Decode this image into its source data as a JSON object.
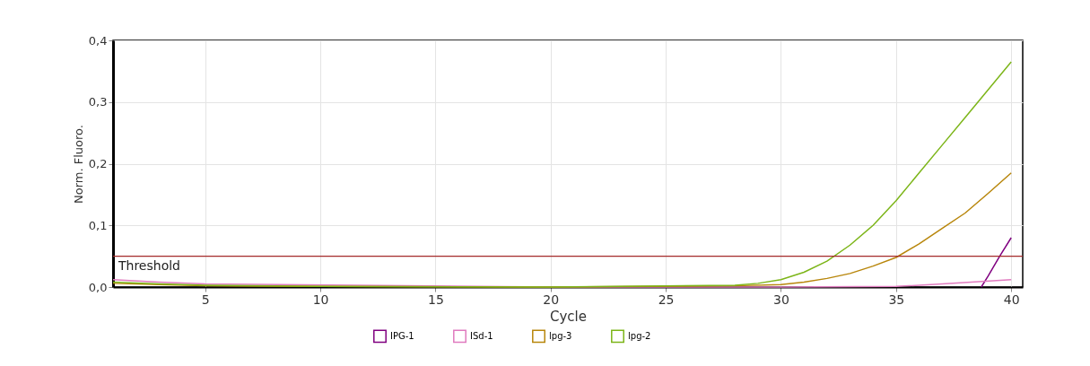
{
  "chart_data": {
    "type": "line",
    "xlabel": "Cycle",
    "ylabel": "Norm. Fluoro.",
    "xlim": [
      1,
      40.5
    ],
    "ylim": [
      0,
      0.4
    ],
    "xticks": [
      5,
      10,
      15,
      20,
      25,
      30,
      35,
      40
    ],
    "yticks": [
      {
        "value": 0,
        "label": "0,0"
      },
      {
        "value": 0.1,
        "label": "0,1"
      },
      {
        "value": 0.2,
        "label": "0,2"
      },
      {
        "value": 0.3,
        "label": "0,3"
      },
      {
        "value": 0.4,
        "label": "0,4"
      }
    ],
    "grid": true,
    "legend": "bottom",
    "marker": "none",
    "line_style": "solid",
    "ref_lines": [
      {
        "axis": "y",
        "value": 0.05,
        "label": "Threshold",
        "color": "#a52a2a"
      }
    ],
    "series": [
      {
        "name": "IPG-1",
        "color": "#800080",
        "x": [
          38.7,
          39,
          39.5,
          40
        ],
        "values": [
          0,
          0.018,
          0.05,
          0.08
        ]
      },
      {
        "name": "ISd-1",
        "color": "#e07bbf",
        "x": [
          1,
          3,
          5,
          20,
          30,
          35,
          37,
          40
        ],
        "values": [
          0.012,
          0.008,
          0.005,
          0,
          0,
          0.001,
          0.005,
          0.012
        ]
      },
      {
        "name": "lpg-3",
        "color": "#b8860b",
        "x": [
          1,
          3,
          5,
          10,
          20,
          28,
          30,
          31,
          32,
          33,
          34,
          35,
          36,
          37,
          38,
          39,
          40
        ],
        "values": [
          0.006,
          0.004,
          0.002,
          0.001,
          0,
          0.002,
          0.004,
          0.008,
          0.014,
          0.022,
          0.034,
          0.048,
          0.07,
          0.095,
          0.12,
          0.152,
          0.185
        ]
      },
      {
        "name": "lpg-2",
        "color": "#7cb518",
        "x": [
          1,
          3,
          5,
          10,
          20,
          28,
          29,
          30,
          31,
          32,
          33,
          34,
          35,
          36,
          37,
          38,
          39,
          40
        ],
        "values": [
          0.008,
          0.005,
          0.003,
          0.001,
          0,
          0.003,
          0.006,
          0.012,
          0.024,
          0.042,
          0.068,
          0.1,
          0.14,
          0.185,
          0.23,
          0.275,
          0.32,
          0.365
        ]
      }
    ]
  }
}
